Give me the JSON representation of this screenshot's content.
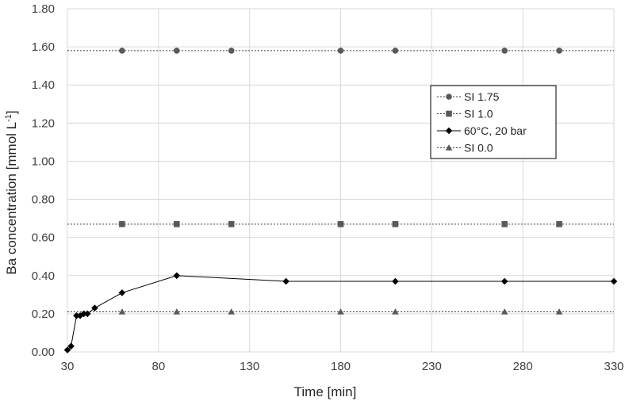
{
  "chart_data": {
    "type": "scatter",
    "title": "",
    "xlabel": "Time [min]",
    "ylabel": "Ba concentration [mmol L",
    "ylabel_superscript": "-1",
    "ylabel_suffix": "]",
    "xlim": [
      30,
      330
    ],
    "ylim": [
      0,
      1.8
    ],
    "x_ticks": [
      30,
      80,
      130,
      180,
      230,
      280,
      330
    ],
    "y_ticks": [
      0,
      0.2,
      0.4,
      0.6,
      0.8,
      1.0,
      1.2,
      1.4,
      1.6,
      1.8
    ],
    "x_tick_labels": [
      "30",
      "80",
      "130",
      "180",
      "230",
      "280",
      "330"
    ],
    "y_tick_labels": [
      "0.00",
      "0.20",
      "0.40",
      "0.60",
      "0.80",
      "1.00",
      "1.20",
      "1.40",
      "1.60",
      "1.80"
    ],
    "grid": true,
    "legend_position": "right",
    "series": [
      {
        "name": "SI 1.75",
        "marker": "circle",
        "line": "dotted",
        "color": "#595959",
        "line_value": 1.58,
        "x": [
          60,
          90,
          120,
          180,
          210,
          270,
          300
        ],
        "y": [
          1.58,
          1.58,
          1.58,
          1.58,
          1.58,
          1.58,
          1.58
        ]
      },
      {
        "name": "SI 1.0",
        "marker": "square",
        "line": "dotted",
        "color": "#595959",
        "line_value": 0.67,
        "x": [
          60,
          90,
          120,
          180,
          210,
          270,
          300
        ],
        "y": [
          0.67,
          0.67,
          0.67,
          0.67,
          0.67,
          0.67,
          0.67
        ]
      },
      {
        "name": "60°C, 20 bar",
        "marker": "diamond",
        "line": "solid",
        "color": "#000000",
        "x": [
          30,
          32,
          35,
          37,
          39,
          41,
          45,
          60,
          90,
          150,
          210,
          270,
          330
        ],
        "y": [
          0.01,
          0.03,
          0.19,
          0.19,
          0.2,
          0.2,
          0.23,
          0.31,
          0.4,
          0.37,
          0.37,
          0.37,
          0.37
        ]
      },
      {
        "name": "SI 0.0",
        "marker": "triangle",
        "line": "dotted",
        "color": "#595959",
        "line_value": 0.21,
        "x": [
          60,
          90,
          120,
          180,
          210,
          270,
          300
        ],
        "y": [
          0.21,
          0.21,
          0.21,
          0.21,
          0.21,
          0.21,
          0.21
        ]
      }
    ]
  }
}
